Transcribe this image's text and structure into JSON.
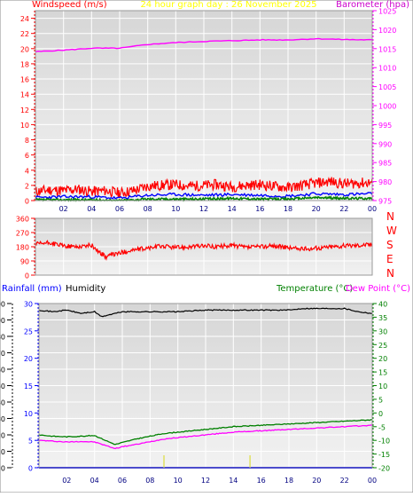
{
  "header": {
    "wind_label": "Windspeed (m/s)",
    "title": "24 hour graph day : 26 November 2025",
    "baro_label": "Barometer (hpa)"
  },
  "dir_labels": [
    "N",
    "W",
    "S",
    "E",
    "N"
  ],
  "lower_header": {
    "rain_label": "Rainfall (mm)",
    "humidity_label": "Humidity",
    "temp_label": "Temperature (°C)",
    "dew_label": "Dew Point (°C)"
  },
  "colors": {
    "wind_gust": "#ff0000",
    "wind_avg": "#0000ff",
    "wind_min": "#008000",
    "barometer": "#ff00ff",
    "direction": "#ff0000",
    "humidity": "#000000",
    "temperature": "#008000",
    "dewpoint": "#ff00ff",
    "rainfall": "#0000ff",
    "rain_axis": "#0000ff",
    "temp_axis": "#008000",
    "title": "#ffff00"
  },
  "chart_data": [
    {
      "type": "line",
      "title": "24 hour graph day : 26 November 2025",
      "ylabel": "Windspeed (m/s)",
      "y2label": "Barometer (hpa)",
      "x_ticks": [
        "02",
        "04",
        "06",
        "08",
        "10",
        "12",
        "14",
        "16",
        "18",
        "20",
        "22",
        "00"
      ],
      "ylim": [
        0,
        25
      ],
      "y_ticks": [
        "0",
        "2",
        "4",
        "6",
        "8",
        "10",
        "12",
        "14",
        "16",
        "18",
        "20",
        "22",
        "24"
      ],
      "y2lim": [
        975,
        1025
      ],
      "y2_ticks": [
        "975",
        "980",
        "985",
        "990",
        "995",
        "1000",
        "1005",
        "1010",
        "1015",
        "1020",
        "1025"
      ],
      "grid": true,
      "series": [
        {
          "color": "#ff0000",
          "x_hours": [
            0,
            1,
            2,
            3,
            4,
            5,
            6,
            7,
            8,
            9,
            10,
            11,
            12,
            13,
            14,
            15,
            16,
            17,
            18,
            19,
            20,
            21,
            22,
            23,
            24
          ],
          "values": [
            1.2,
            1.4,
            1.3,
            1.5,
            1.2,
            1.3,
            1.0,
            1.3,
            1.9,
            2.0,
            2.1,
            1.9,
            2.0,
            2.1,
            1.8,
            2.0,
            2.1,
            1.9,
            1.7,
            2.0,
            2.3,
            2.5,
            2.2,
            2.3,
            2.4
          ]
        },
        {
          "color": "#0000ff",
          "x_hours": [
            0,
            2,
            4,
            6,
            8,
            10,
            12,
            14,
            16,
            18,
            20,
            22,
            24
          ],
          "values": [
            0.4,
            0.5,
            0.5,
            0.3,
            0.7,
            0.8,
            0.7,
            0.8,
            0.7,
            0.6,
            0.9,
            0.8,
            0.9
          ]
        },
        {
          "color": "#008000",
          "x_hours": [
            0,
            2,
            4,
            6,
            8,
            10,
            12,
            14,
            16,
            18,
            20,
            22,
            24
          ],
          "values": [
            0.1,
            0.1,
            0.1,
            0.0,
            0.2,
            0.2,
            0.2,
            0.3,
            0.2,
            0.2,
            0.4,
            0.3,
            0.3
          ]
        },
        {
          "color": "#ff00ff",
          "axis": "y2",
          "x_hours": [
            0,
            2,
            4,
            6,
            8,
            10,
            12,
            14,
            16,
            18,
            20,
            22,
            24
          ],
          "values": [
            1014.2,
            1014.6,
            1015.1,
            1015.1,
            1016.1,
            1016.6,
            1016.9,
            1017.1,
            1017.3,
            1017.3,
            1017.6,
            1017.4,
            1017.3
          ]
        }
      ]
    },
    {
      "type": "line",
      "x_ticks": [],
      "ylim": [
        0,
        360
      ],
      "y_ticks": [
        "0",
        "90",
        "180",
        "270",
        "360"
      ],
      "grid": true,
      "series": [
        {
          "color": "#ff0000",
          "x_hours": [
            0,
            1,
            2,
            3,
            4,
            4.5,
            5,
            5.5,
            6,
            7,
            8,
            9,
            10,
            11,
            12,
            13,
            14,
            15,
            16,
            17,
            18,
            19,
            20,
            21,
            22,
            23,
            24
          ],
          "values": [
            195,
            205,
            185,
            180,
            190,
            150,
            115,
            130,
            140,
            160,
            170,
            185,
            175,
            180,
            185,
            180,
            190,
            175,
            180,
            185,
            175,
            165,
            170,
            180,
            185,
            190,
            195
          ]
        }
      ]
    },
    {
      "type": "line",
      "x_ticks": [
        "02",
        "04",
        "06",
        "08",
        "10",
        "12",
        "14",
        "16",
        "18",
        "20",
        "22",
        "00"
      ],
      "ylim": [
        0,
        100
      ],
      "y_ticks": [
        "0",
        "10",
        "20",
        "30",
        "40",
        "50",
        "60",
        "70",
        "80",
        "90",
        "100"
      ],
      "rain_ylim": [
        0,
        30
      ],
      "rain_ticks": [
        "0",
        "5",
        "10",
        "15",
        "20",
        "25",
        "30"
      ],
      "temp_ylim": [
        -20,
        40
      ],
      "temp_ticks": [
        "-20",
        "-15",
        "-10",
        "-5",
        "0",
        "5",
        "10",
        "15",
        "20",
        "25",
        "30",
        "35",
        "40"
      ],
      "grid": true,
      "series": [
        {
          "color": "#000000",
          "x_hours": [
            0,
            1,
            2,
            3,
            4,
            4.5,
            5,
            5.5,
            6,
            7,
            8,
            10,
            12,
            14,
            16,
            18,
            19,
            20,
            22,
            23,
            24
          ],
          "values": [
            96,
            95,
            96,
            94,
            95,
            92,
            93,
            94,
            95,
            95,
            95,
            95,
            96,
            96,
            96,
            96,
            97,
            97,
            97,
            95,
            94
          ]
        },
        {
          "color": "#008000",
          "axis": "temp",
          "x_hours": [
            0,
            1,
            2,
            3,
            4,
            5,
            5.5,
            6,
            7,
            8,
            9,
            10,
            12,
            14,
            16,
            18,
            20,
            22,
            24
          ],
          "values": [
            -8,
            -8.5,
            -8.7,
            -8.5,
            -8.2,
            -10.5,
            -11.5,
            -10.8,
            -9.5,
            -8.5,
            -7.5,
            -7,
            -6,
            -5,
            -4.5,
            -4,
            -3.5,
            -3,
            -2.5
          ]
        },
        {
          "color": "#ff00ff",
          "axis": "temp",
          "x_hours": [
            0,
            1,
            2,
            3,
            4,
            5,
            5.5,
            6,
            7,
            8,
            9,
            10,
            12,
            14,
            16,
            18,
            20,
            22,
            24
          ],
          "values": [
            -10,
            -10.3,
            -10.6,
            -10.4,
            -10.6,
            -12.2,
            -13,
            -12.3,
            -11.5,
            -10.5,
            -9.5,
            -9,
            -8,
            -7,
            -6.5,
            -6,
            -5.5,
            -5,
            -4.5
          ]
        },
        {
          "color": "#0000ff",
          "axis": "rain",
          "x_hours": [
            0,
            24
          ],
          "values": [
            0,
            0
          ]
        }
      ]
    }
  ]
}
